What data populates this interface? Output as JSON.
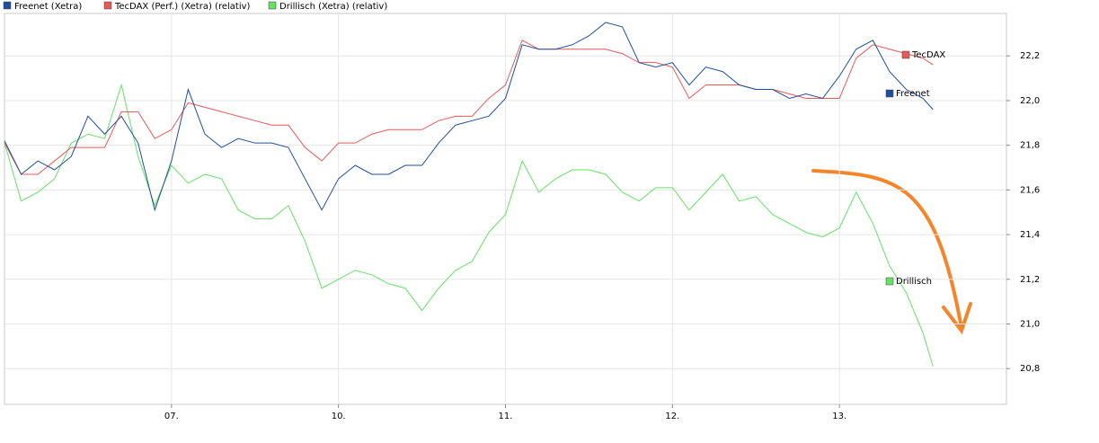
{
  "chart_data": {
    "type": "line",
    "x": [
      0,
      0.1,
      0.2,
      0.3,
      0.4,
      0.5,
      0.6,
      0.7,
      0.8,
      0.9,
      1.0,
      1.1,
      1.2,
      1.3,
      1.4,
      1.5,
      1.6,
      1.7,
      1.8,
      1.9,
      2.0,
      2.1,
      2.2,
      2.3,
      2.4,
      2.5,
      2.6,
      2.7,
      2.8,
      2.9,
      3.0,
      3.1,
      3.2,
      3.3,
      3.4,
      3.5,
      3.6,
      3.7,
      3.8,
      3.9,
      4.0,
      4.1,
      4.2,
      4.3,
      4.4,
      4.5,
      4.6,
      4.7,
      4.8,
      4.9,
      5.0,
      5.1,
      5.2,
      5.3,
      5.4,
      5.5,
      5.56
    ],
    "xlim": [
      0,
      6
    ],
    "xticks": [
      {
        "value": 1,
        "label": "07."
      },
      {
        "value": 2,
        "label": "10."
      },
      {
        "value": 3,
        "label": "11."
      },
      {
        "value": 4,
        "label": "12."
      },
      {
        "value": 5,
        "label": "13."
      }
    ],
    "ylim": [
      20.64,
      22.39
    ],
    "yticks": [
      {
        "value": 22.2,
        "label": "22,2"
      },
      {
        "value": 22.0,
        "label": "22,0"
      },
      {
        "value": 21.8,
        "label": "21,8"
      },
      {
        "value": 21.6,
        "label": "21,6"
      },
      {
        "value": 21.4,
        "label": "21,4"
      },
      {
        "value": 21.2,
        "label": "21,2"
      },
      {
        "value": 21.0,
        "label": "21,0"
      },
      {
        "value": 20.8,
        "label": "20,8"
      }
    ],
    "grid": true,
    "series": [
      {
        "name": "Freenet (Xetra)",
        "end_label": "Freenet",
        "color": "#1f4e9c",
        "values": [
          21.82,
          21.67,
          21.73,
          21.69,
          21.75,
          21.93,
          21.85,
          21.93,
          21.81,
          21.51,
          21.73,
          22.05,
          21.85,
          21.79,
          21.83,
          21.81,
          21.81,
          21.79,
          21.65,
          21.51,
          21.65,
          21.71,
          21.67,
          21.67,
          21.71,
          21.71,
          21.81,
          21.89,
          21.91,
          21.93,
          22.01,
          22.25,
          22.23,
          22.23,
          22.25,
          22.29,
          22.35,
          22.33,
          22.17,
          22.15,
          22.17,
          22.07,
          22.15,
          22.13,
          22.07,
          22.05,
          22.05,
          22.01,
          22.03,
          22.01,
          22.11,
          22.23,
          22.27,
          22.13,
          22.05,
          22.01,
          21.96
        ]
      },
      {
        "name": "TecDAX (Perf.) (Xetra) (relativ)",
        "end_label": "TecDAX",
        "color": "#e8595a",
        "values": [
          21.81,
          21.67,
          21.67,
          21.73,
          21.79,
          21.79,
          21.79,
          21.95,
          21.95,
          21.83,
          21.87,
          21.99,
          21.97,
          21.95,
          21.93,
          21.91,
          21.89,
          21.89,
          21.79,
          21.73,
          21.81,
          21.81,
          21.85,
          21.87,
          21.87,
          21.87,
          21.91,
          21.93,
          21.93,
          22.01,
          22.07,
          22.27,
          22.23,
          22.23,
          22.23,
          22.23,
          22.23,
          22.21,
          22.17,
          22.17,
          22.15,
          22.01,
          22.07,
          22.07,
          22.07,
          22.05,
          22.05,
          22.03,
          22.01,
          22.01,
          22.01,
          22.19,
          22.25,
          22.23,
          22.21,
          22.19,
          22.16
        ]
      },
      {
        "name": "Drillisch (Xetra) (relativ)",
        "end_label": "Drillisch",
        "color": "#66e066",
        "values": [
          21.81,
          21.55,
          21.59,
          21.65,
          21.81,
          21.85,
          21.83,
          22.07,
          21.75,
          21.53,
          21.71,
          21.63,
          21.67,
          21.65,
          21.51,
          21.47,
          21.47,
          21.53,
          21.37,
          21.16,
          21.2,
          21.24,
          21.22,
          21.18,
          21.16,
          21.06,
          21.16,
          21.24,
          21.28,
          21.41,
          21.49,
          21.73,
          21.59,
          21.65,
          21.69,
          21.69,
          21.67,
          21.59,
          21.55,
          21.61,
          21.61,
          21.51,
          21.59,
          21.67,
          21.55,
          21.57,
          21.49,
          21.45,
          21.41,
          21.39,
          21.43,
          21.59,
          21.45,
          21.26,
          21.14,
          20.96,
          20.81
        ]
      }
    ]
  }
}
